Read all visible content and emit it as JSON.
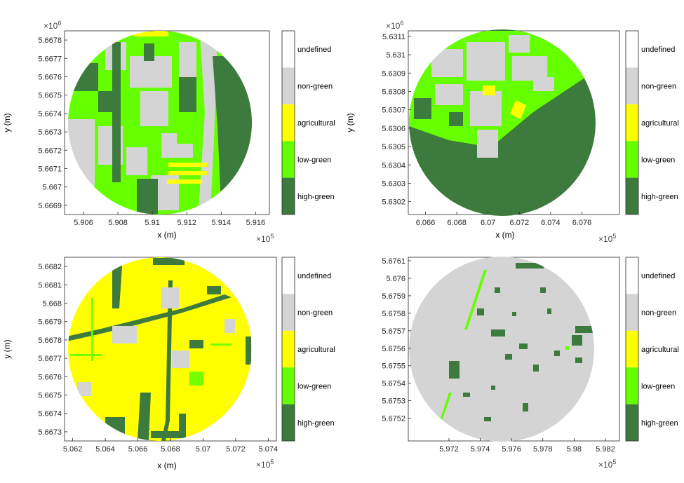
{
  "class_legend": [
    {
      "label": "undefined",
      "color": "#ffffff"
    },
    {
      "label": "non-green",
      "color": "#d4d4d4"
    },
    {
      "label": "agricultural",
      "color": "#ffff00"
    },
    {
      "label": "low-green",
      "color": "#66ff00"
    },
    {
      "label": "high-green",
      "color": "#3d7a3d"
    }
  ],
  "chart_data": [
    {
      "type": "heatmap",
      "xlabel": "x (m)",
      "ylabel": "y (m)",
      "x_exponent_label": "×10",
      "x_exponent": "5",
      "y_exponent_label": "×10",
      "y_exponent": "6",
      "xlim": [
        5.9049,
        5.9168
      ],
      "ylim": [
        5.66685,
        5.66785
      ],
      "x_ticks": [
        "5.906",
        "5.908",
        "5.91",
        "5.912",
        "5.914",
        "5.916"
      ],
      "x_tick_values": [
        5.906,
        5.908,
        5.91,
        5.912,
        5.914,
        5.916
      ],
      "y_ticks": [
        "5.6678",
        "5.6677",
        "5.6676",
        "5.6675",
        "5.6674",
        "5.6673",
        "5.6672",
        "5.6671",
        "5.667",
        "5.6669"
      ],
      "y_tick_values": [
        5.6678,
        5.6677,
        5.6676,
        5.6675,
        5.6674,
        5.6673,
        5.6672,
        5.6671,
        5.667,
        5.6669
      ],
      "class_shares": {
        "non-green": 0.3,
        "agricultural": 0.05,
        "low-green": 0.4,
        "high-green": 0.25
      },
      "grid": false,
      "legend": "colorbar-right"
    },
    {
      "type": "heatmap",
      "xlabel": "x (m)",
      "ylabel": "y (m)",
      "x_exponent_label": "×10",
      "x_exponent": "5",
      "y_exponent_label": "×10",
      "y_exponent": "6",
      "xlim": [
        6.0649,
        6.0784
      ],
      "ylim": [
        5.63013,
        5.63113
      ],
      "x_ticks": [
        "6.066",
        "6.068",
        "6.07",
        "6.072",
        "6.074",
        "6.076"
      ],
      "x_tick_values": [
        6.066,
        6.068,
        6.07,
        6.072,
        6.074,
        6.076
      ],
      "y_ticks": [
        "5.6311",
        "5.631",
        "5.6309",
        "5.6308",
        "5.6307",
        "5.6306",
        "5.6305",
        "5.6304",
        "5.6303",
        "5.6302"
      ],
      "y_tick_values": [
        5.6311,
        5.631,
        5.6309,
        5.6308,
        5.6307,
        5.6306,
        5.6305,
        5.6304,
        5.6303,
        5.6302
      ],
      "class_shares": {
        "non-green": 0.25,
        "agricultural": 0.02,
        "low-green": 0.23,
        "high-green": 0.5
      },
      "grid": false,
      "legend": "colorbar-right"
    },
    {
      "type": "heatmap",
      "xlabel": "x (m)",
      "ylabel": "y (m)",
      "x_exponent_label": "×10",
      "x_exponent": "5",
      "x_exponent_visible": true,
      "xlim": [
        5.0615,
        5.0745
      ],
      "ylim": [
        5.66725,
        5.66825
      ],
      "x_ticks": [
        "5.062",
        "5.064",
        "5.066",
        "5.068",
        "5.07",
        "5.072",
        "5.074"
      ],
      "x_tick_values": [
        5.062,
        5.064,
        5.066,
        5.068,
        5.07,
        5.072,
        5.074
      ],
      "y_ticks": [
        "5.6682",
        "5.6681",
        "5.668",
        "5.6679",
        "5.6678",
        "5.6677",
        "5.6676",
        "5.6675",
        "5.6674",
        "5.6673"
      ],
      "y_tick_values": [
        5.6682,
        5.6681,
        5.668,
        5.6679,
        5.6678,
        5.6677,
        5.6676,
        5.6675,
        5.6674,
        5.6673
      ],
      "class_shares": {
        "non-green": 0.08,
        "agricultural": 0.75,
        "low-green": 0.07,
        "high-green": 0.1
      },
      "grid": false,
      "legend": "colorbar-right"
    },
    {
      "type": "heatmap",
      "xlabel": "",
      "ylabel": "",
      "x_exponent_label": "×10",
      "x_exponent": "5",
      "xlim": [
        5.9694,
        5.9829
      ],
      "ylim": [
        5.67507,
        5.67612
      ],
      "x_ticks": [
        "5.972",
        "5.974",
        "5.976",
        "5.978",
        "5.98",
        "5.982"
      ],
      "x_tick_values": [
        5.972,
        5.974,
        5.976,
        5.978,
        5.98,
        5.982
      ],
      "y_ticks": [
        "5.6761",
        "5.676",
        "5.6759",
        "5.6758",
        "5.6757",
        "5.6756",
        "5.6755",
        "5.6754",
        "5.6753",
        "5.6752"
      ],
      "y_tick_values": [
        5.6761,
        5.676,
        5.6759,
        5.6758,
        5.6757,
        5.6756,
        5.6755,
        5.6754,
        5.6753,
        5.6752
      ],
      "class_shares": {
        "non-green": 0.85,
        "agricultural": 0.0,
        "low-green": 0.03,
        "high-green": 0.12
      },
      "grid": false,
      "legend": "colorbar-right"
    }
  ]
}
